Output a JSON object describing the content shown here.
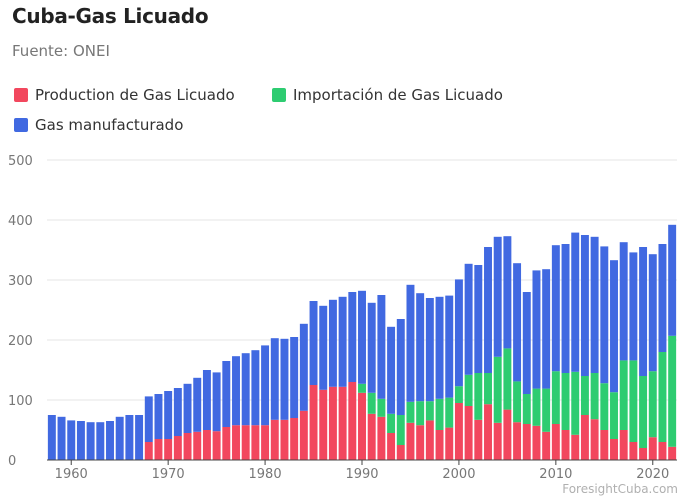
{
  "title": "Cuba-Gas Licuado",
  "subtitle": "Fuente: ONEI",
  "credit": "ForesightCuba.com",
  "legend": [
    {
      "label": "Production de Gas Licuado",
      "color": "#f2475e"
    },
    {
      "label": "Importación de Gas Licuado",
      "color": "#2ecc71"
    },
    {
      "label": "Gas manufacturado",
      "color": "#4169e1"
    }
  ],
  "chart_data": {
    "type": "bar",
    "stacked": true,
    "title": "Cuba-Gas Licuado",
    "subtitle": "Fuente: ONEI",
    "xlabel": "",
    "ylabel": "",
    "ylim": [
      0,
      500
    ],
    "yticks": [
      0,
      100,
      200,
      300,
      400,
      500
    ],
    "xticks": [
      1960,
      1970,
      1980,
      1990,
      2000,
      2010,
      2020
    ],
    "grid": true,
    "legend_position": "top",
    "x": [
      1958,
      1959,
      1960,
      1961,
      1962,
      1963,
      1964,
      1965,
      1966,
      1967,
      1968,
      1969,
      1970,
      1971,
      1972,
      1973,
      1974,
      1975,
      1976,
      1977,
      1978,
      1979,
      1980,
      1981,
      1982,
      1983,
      1984,
      1985,
      1986,
      1987,
      1988,
      1989,
      1990,
      1991,
      1992,
      1993,
      1994,
      1995,
      1996,
      1997,
      1998,
      1999,
      2000,
      2001,
      2002,
      2003,
      2004,
      2005,
      2006,
      2007,
      2008,
      2009,
      2010,
      2011,
      2012,
      2013,
      2014,
      2015,
      2016,
      2017,
      2018,
      2019,
      2020,
      2021,
      2022
    ],
    "series": [
      {
        "name": "Production de Gas Licuado",
        "color": "#f2475e",
        "values": [
          0,
          0,
          0,
          0,
          0,
          0,
          0,
          0,
          0,
          0,
          30,
          35,
          35,
          40,
          45,
          47,
          50,
          48,
          55,
          58,
          58,
          58,
          58,
          67,
          67,
          70,
          82,
          125,
          117,
          122,
          122,
          130,
          112,
          77,
          72,
          45,
          25,
          62,
          58,
          66,
          50,
          54,
          95,
          90,
          67,
          93,
          62,
          84,
          63,
          60,
          57,
          47,
          60,
          50,
          42,
          75,
          68,
          50,
          35,
          50,
          30,
          20,
          38,
          30,
          22
        ]
      },
      {
        "name": "Importación de Gas Licuado",
        "color": "#2ecc71",
        "values": [
          0,
          0,
          0,
          0,
          0,
          0,
          0,
          0,
          0,
          0,
          0,
          0,
          0,
          0,
          0,
          0,
          0,
          0,
          0,
          0,
          0,
          0,
          0,
          0,
          0,
          0,
          0,
          0,
          0,
          0,
          0,
          0,
          15,
          35,
          30,
          32,
          50,
          35,
          40,
          32,
          52,
          50,
          28,
          52,
          78,
          52,
          110,
          102,
          68,
          50,
          62,
          72,
          88,
          95,
          105,
          65,
          77,
          78,
          78,
          116,
          136,
          120,
          110,
          150,
          185
        ]
      },
      {
        "name": "Gas manufacturado",
        "color": "#4169e1",
        "values": [
          75,
          72,
          66,
          65,
          63,
          63,
          65,
          72,
          75,
          75,
          76,
          75,
          80,
          80,
          82,
          90,
          100,
          98,
          110,
          115,
          120,
          125,
          133,
          136,
          135,
          135,
          145,
          140,
          140,
          145,
          150,
          150,
          155,
          150,
          173,
          145,
          160,
          195,
          180,
          172,
          170,
          170,
          178,
          185,
          180,
          210,
          200,
          187,
          197,
          170,
          197,
          199,
          210,
          215,
          232,
          235,
          227,
          228,
          220,
          197,
          180,
          215,
          195,
          180,
          185
        ]
      }
    ]
  }
}
